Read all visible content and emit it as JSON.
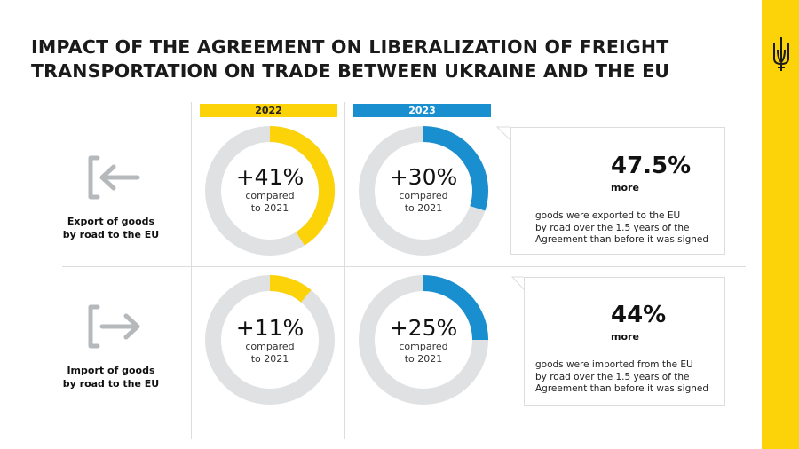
{
  "title_line1": "IMPACT OF THE AGREEMENT ON LIBERALIZATION OF FREIGHT",
  "title_line2": "TRANSPORTATION ON TRADE BETWEEN UKRAINE AND THE EU",
  "colors": {
    "y2022": "#fcd209",
    "y2023": "#1a8fd0",
    "track": "#dfe1e2",
    "pie": "#20bcc7",
    "pie_rest": "#dfe1e2",
    "sidebar": "#fcd209"
  },
  "chart_data": {
    "type": "donut",
    "columns": [
      "2022",
      "2023"
    ],
    "rows": [
      {
        "label": "Export of goods by road to the EU",
        "label_line1": "Export of goods",
        "label_line2": "by road to the EU",
        "icon": "arrow-left-into-bracket-icon",
        "values": [
          41,
          30
        ],
        "value_labels": [
          "+41%",
          "+30%"
        ],
        "sublabel1": "compared",
        "sublabel2": "to 2021",
        "summary": {
          "value": 47.5,
          "value_label": "47.5%",
          "unit": "more",
          "lines": [
            "goods were exported to the EU",
            "by road over the 1.5 years of the",
            "Agreement than before it was signed"
          ]
        }
      },
      {
        "label": "Import of goods by road to the EU",
        "label_line1": "Import of goods",
        "label_line2": "by road to the EU",
        "icon": "arrow-right-out-of-bracket-icon",
        "values": [
          11,
          25
        ],
        "value_labels": [
          "+11%",
          "+25%"
        ],
        "sublabel1": "compared",
        "sublabel2": "to 2021",
        "summary": {
          "value": 44,
          "value_label": "44%",
          "unit": "more",
          "lines": [
            "goods were imported from the EU",
            "by road over the 1.5 years of the",
            "Agreement than before it was signed"
          ]
        }
      }
    ]
  }
}
